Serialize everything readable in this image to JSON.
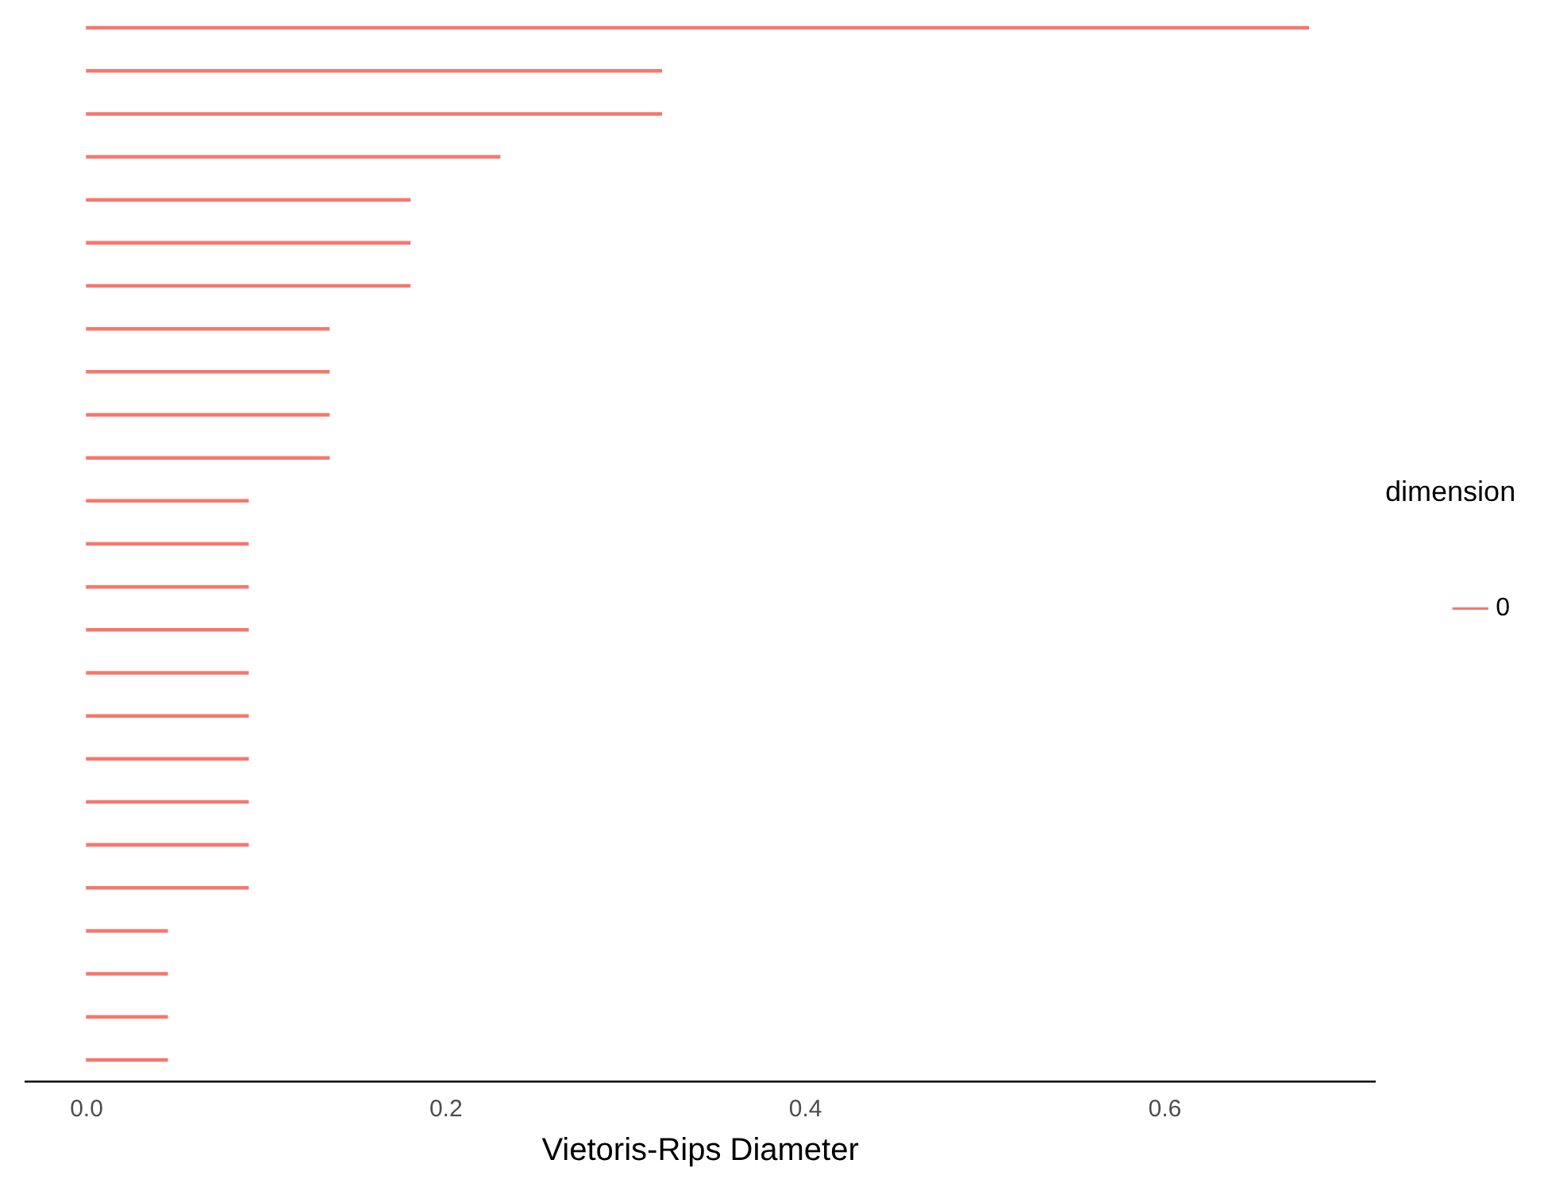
{
  "chart_data": {
    "type": "bar",
    "orientation": "horizontal",
    "xlabel": "Vietoris-Rips Diameter",
    "legend_title": "dimension",
    "legend": "right",
    "grid": false,
    "tick_labels": "x",
    "categories": [
      null,
      null,
      null,
      null,
      null,
      null,
      null,
      null,
      null,
      null,
      null,
      null,
      null,
      null,
      null,
      null,
      null,
      null,
      null,
      null,
      null,
      null,
      null,
      null,
      null
    ],
    "series": [
      {
        "name": "0",
        "color": "#f8766d",
        "values": [
          0.68,
          0.32,
          0.32,
          0.23,
          0.18,
          0.18,
          0.18,
          0.135,
          0.135,
          0.135,
          0.135,
          0.09,
          0.09,
          0.09,
          0.09,
          0.09,
          0.09,
          0.09,
          0.09,
          0.09,
          0.09,
          0.045,
          0.045,
          0.045,
          0.045
        ]
      }
    ],
    "xlim": [
      -0.034,
      0.717
    ],
    "xticks": [
      {
        "value": 0,
        "label": "0.0"
      },
      {
        "value": 0.2,
        "label": "0.2"
      },
      {
        "value": 0.4,
        "label": "0.4"
      },
      {
        "value": 0.6,
        "label": "0.6"
      }
    ]
  }
}
